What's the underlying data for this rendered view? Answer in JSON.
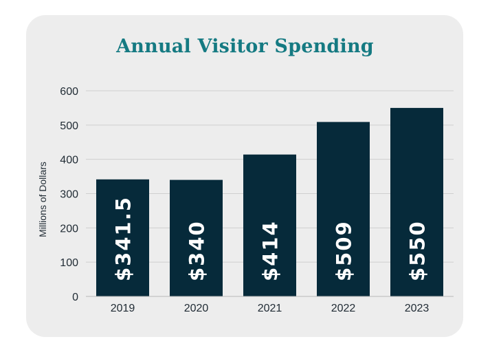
{
  "chart_data": {
    "type": "bar",
    "title": "Annual Visitor Spending",
    "ylabel": "Millions of Dollars",
    "xlabel": "",
    "categories": [
      "2019",
      "2020",
      "2021",
      "2022",
      "2023"
    ],
    "values": [
      341.5,
      340,
      414,
      509,
      550
    ],
    "data_labels": [
      "$341.5",
      "$340",
      "$414",
      "$509",
      "$550"
    ],
    "ylim": [
      0,
      600
    ],
    "yticks": [
      0,
      100,
      200,
      300,
      400,
      500,
      600
    ],
    "grid": true,
    "legend": "none",
    "colors": {
      "bar": "#062a3a",
      "title": "#157a82",
      "grid": "#cfcfcf",
      "background": "#ededed"
    }
  }
}
